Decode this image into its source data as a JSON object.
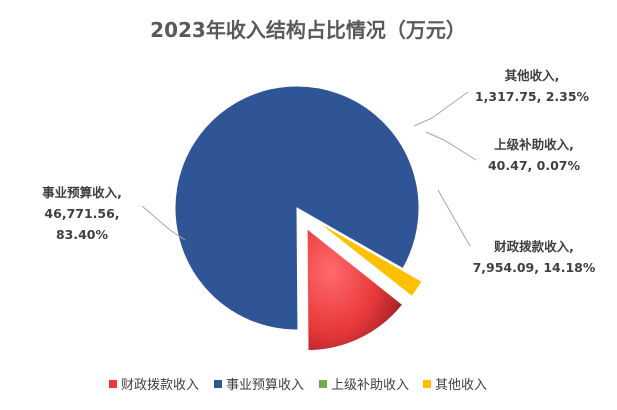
{
  "chart_data": {
    "type": "pie",
    "title": "2023年收入结构占比情况（万元）",
    "categories": [
      "财政拨款收入",
      "事业预算收入",
      "上级补助收入",
      "其他收入"
    ],
    "values": [
      7954.09,
      46771.56,
      40.47,
      1317.75
    ],
    "percents": [
      "14.18%",
      "83.40%",
      "0.07%",
      "2.35%"
    ],
    "value_labels": [
      "7,954.09",
      "46,771.56",
      "40.47",
      "1,317.75"
    ],
    "colors": [
      "#e8383b",
      "#2f5597",
      "#70ad47",
      "#ffc000"
    ],
    "exploded": [
      "财政拨款收入",
      "上级补助收入",
      "其他收入"
    ],
    "legend_position": "bottom",
    "data_labels": [
      {
        "name": "事业预算收入,",
        "value": "46,771.56,",
        "percent": "83.40%"
      },
      {
        "name": "其他收入,",
        "value_percent": "1,317.75, 2.35%"
      },
      {
        "name": "上级补助收入,",
        "value_percent": "40.47, 0.07%"
      },
      {
        "name": "财政拨款收入,",
        "value_percent": "7,954.09, 14.18%"
      }
    ]
  }
}
